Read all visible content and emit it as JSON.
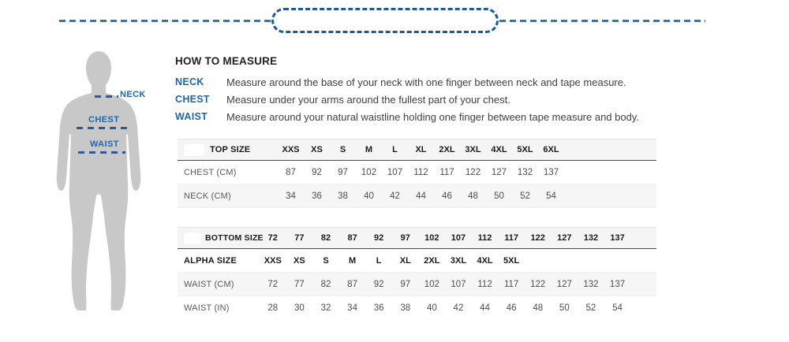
{
  "figure": {
    "neck_label": "NECK",
    "chest_label": "CHEST",
    "waist_label": "WAIST"
  },
  "how_to_measure": {
    "title": "HOW TO MEASURE",
    "rows": [
      {
        "term": "NECK",
        "text": "Measure around the base of your neck with one finger between neck and tape measure."
      },
      {
        "term": "CHEST",
        "text": "Measure under your arms around the fullest part of your chest."
      },
      {
        "term": "WAIST",
        "text": "Measure around your natural waistline holding one finger between tape measure and body."
      }
    ]
  },
  "top_table": {
    "header_label": "TOP SIZE",
    "header_values": [
      "XXS",
      "XS",
      "S",
      "M",
      "L",
      "XL",
      "2XL",
      "3XL",
      "4XL",
      "5XL",
      "6XL"
    ],
    "rows": [
      {
        "label": "CHEST (CM)",
        "values": [
          "87",
          "92",
          "97",
          "102",
          "107",
          "112",
          "117",
          "122",
          "127",
          "132",
          "137"
        ]
      },
      {
        "label": "NECK (CM)",
        "values": [
          "34",
          "36",
          "38",
          "40",
          "42",
          "44",
          "46",
          "48",
          "50",
          "52",
          "54"
        ]
      }
    ]
  },
  "bottom_table": {
    "header_label": "BOTTOM  SIZE",
    "header_values": [
      "72",
      "77",
      "82",
      "87",
      "92",
      "97",
      "102",
      "107",
      "112",
      "117",
      "122",
      "127",
      "132",
      "137"
    ],
    "rows": [
      {
        "label": "ALPHA SIZE",
        "values": [
          "XXS",
          "XS",
          "S",
          "M",
          "L",
          "XL",
          "2XL",
          "3XL",
          "4XL",
          "5XL"
        ]
      },
      {
        "label": "WAIST (CM)",
        "values": [
          "72",
          "77",
          "82",
          "87",
          "92",
          "97",
          "102",
          "107",
          "112",
          "117",
          "122",
          "127",
          "132",
          "137"
        ]
      },
      {
        "label": "WAIST (IN)",
        "values": [
          "28",
          "30",
          "32",
          "34",
          "36",
          "38",
          "40",
          "42",
          "44",
          "46",
          "48",
          "50",
          "52",
          "54"
        ]
      }
    ]
  },
  "colors": {
    "accent_blue": "#1a68b3",
    "dash_navy": "#2b5a9c",
    "decoration_blue": "#2e79bd",
    "figure_gray": "#c8c8c8",
    "row_gray": "#f6f6f7",
    "header_rule": "#4a4a4a",
    "text_dark": "#231f20",
    "text_body": "#414042"
  }
}
